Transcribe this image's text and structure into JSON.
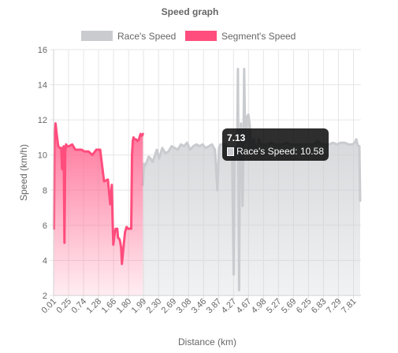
{
  "chart_data": {
    "type": "area",
    "title": "Speed graph",
    "xlabel": "Distance (km)",
    "ylabel": "Speed (km/h)",
    "ylim": [
      2,
      16
    ],
    "yticks": [
      2,
      4,
      6,
      8,
      10,
      12,
      14,
      16
    ],
    "grid": true,
    "legend_position": "top",
    "x_tick_labels": [
      "0.01",
      "0.25",
      "0.74",
      "1.28",
      "1.66",
      "1.80",
      "1.99",
      "2.30",
      "2.69",
      "3.08",
      "3.46",
      "3.87",
      "4.27",
      "4.67",
      "4.98",
      "5.27",
      "5.69",
      "6.25",
      "6.83",
      "7.29",
      "7.81"
    ],
    "legend": [
      {
        "name": "Race's Speed",
        "color": "#c9cbcf"
      },
      {
        "name": "Segment's Speed",
        "color": "#ff4d7d"
      }
    ],
    "series": [
      {
        "name": "Race's Speed",
        "color": "#c9cbcf",
        "x": [
          2.3,
          2.33,
          2.36,
          2.4,
          2.45,
          2.5,
          2.55,
          2.6,
          2.66,
          2.72,
          2.8,
          2.88,
          2.96,
          3.04,
          3.12,
          3.2,
          3.28,
          3.36,
          3.44,
          3.52,
          3.6,
          3.68,
          3.76,
          3.84,
          3.92,
          4.0,
          4.08,
          4.16,
          4.22,
          4.26,
          4.3,
          4.36,
          4.42,
          4.48,
          4.54,
          4.6,
          4.64,
          4.66,
          4.69,
          4.71,
          4.73,
          4.75,
          4.78,
          4.8,
          4.83,
          4.87,
          4.89,
          4.91,
          4.93,
          4.95,
          4.97,
          4.99,
          5.02,
          5.05,
          5.08,
          5.1,
          5.13,
          5.16,
          5.2,
          5.24,
          5.28,
          5.34,
          5.4,
          5.46,
          5.52,
          5.6,
          5.7,
          5.8,
          5.9,
          6.0,
          6.1,
          6.2,
          6.3,
          6.4,
          6.5,
          6.6,
          6.7,
          6.8,
          6.9,
          7.0,
          7.1,
          7.2,
          7.3,
          7.4,
          7.5,
          7.6,
          7.7,
          7.76,
          7.8,
          7.83,
          7.86,
          7.88,
          7.9
        ],
        "values": [
          8.3,
          9.5,
          9.4,
          9.6,
          9.9,
          9.8,
          9.6,
          9.9,
          10.3,
          9.8,
          10.4,
          10.1,
          10.2,
          10.5,
          10.4,
          10.3,
          10.6,
          10.5,
          10.7,
          10.3,
          10.5,
          10.6,
          10.5,
          10.6,
          10.4,
          10.5,
          10.6,
          10.3,
          8.0,
          10.4,
          10.6,
          10.6,
          10.6,
          10.3,
          10.3,
          10.3,
          3.2,
          10.3,
          10.4,
          10.2,
          10.5,
          14.9,
          2.3,
          10.4,
          11.8,
          7.1,
          10.2,
          14.9,
          12.0,
          10.9,
          11.6,
          12.2,
          12.3,
          11.8,
          10.8,
          10.4,
          10.5,
          10.9,
          10.3,
          10.2,
          10.9,
          10.6,
          10.6,
          10.6,
          10.6,
          10.7,
          10.6,
          10.6,
          10.6,
          10.7,
          10.6,
          10.6,
          10.6,
          10.6,
          10.6,
          10.6,
          10.6,
          10.8,
          10.6,
          10.6,
          10.6,
          10.7,
          10.6,
          10.7,
          10.7,
          10.6,
          10.6,
          10.7,
          10.9,
          10.6,
          10.5,
          10.5,
          7.4
        ]
      },
      {
        "name": "Segment's Speed",
        "color": "#ff4d7d",
        "x": [
          0.01,
          0.02,
          0.03,
          0.05,
          0.08,
          0.12,
          0.16,
          0.2,
          0.22,
          0.24,
          0.26,
          0.28,
          0.3,
          0.32,
          0.35,
          0.4,
          0.48,
          0.56,
          0.64,
          0.72,
          0.8,
          0.9,
          1.0,
          1.1,
          1.2,
          1.3,
          1.4,
          1.46,
          1.5,
          1.52,
          1.54,
          1.56,
          1.58,
          1.6,
          1.62,
          1.64,
          1.66,
          1.7,
          1.72,
          1.74,
          1.76,
          1.8,
          1.84,
          1.88,
          1.92,
          1.96,
          2.0,
          2.02,
          2.04,
          2.06,
          2.08,
          2.12,
          2.16,
          2.2,
          2.24,
          2.28,
          2.3
        ],
        "values": [
          5.8,
          10.5,
          11.0,
          11.8,
          11.2,
          10.5,
          10.4,
          10.4,
          9.2,
          10.2,
          10.5,
          5.0,
          10.2,
          10.6,
          10.5,
          10.5,
          10.6,
          10.3,
          10.3,
          10.3,
          10.2,
          10.2,
          10.0,
          10.3,
          10.3,
          8.5,
          8.6,
          7.2,
          8.3,
          6.4,
          4.9,
          5.3,
          5.6,
          5.8,
          5.7,
          5.8,
          5.3,
          5.2,
          5.0,
          4.7,
          3.8,
          4.7,
          5.6,
          5.9,
          5.8,
          5.8,
          5.8,
          10.0,
          10.8,
          11.0,
          10.9,
          10.9,
          10.8,
          10.9,
          11.2,
          11.1,
          11.2
        ]
      }
    ],
    "tooltip": {
      "title": "7.13",
      "label": "Race's Speed: 10.58"
    }
  }
}
